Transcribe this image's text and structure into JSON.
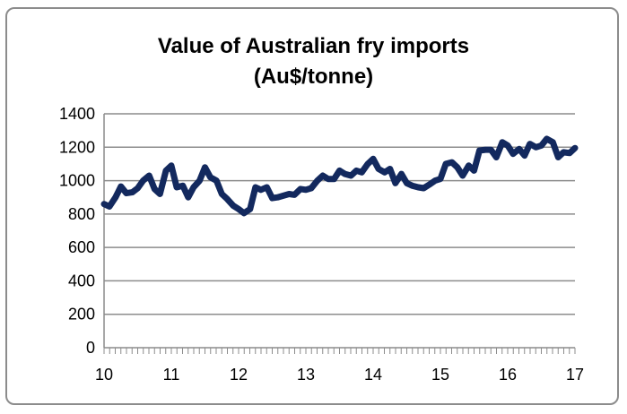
{
  "chart_data": {
    "type": "line",
    "title_lines": [
      "Value of Australian fry imports",
      "(Au$/tonne)"
    ],
    "xlabel": "",
    "ylabel": "",
    "ylim": [
      0,
      1400
    ],
    "yticks": [
      0,
      200,
      400,
      600,
      800,
      1000,
      1200,
      1400
    ],
    "xlim": [
      10,
      17
    ],
    "xticks": [
      "10",
      "11",
      "12",
      "13",
      "14",
      "15",
      "16",
      "17"
    ],
    "grid": "horizontal",
    "legend": "none",
    "line_color": "#13295e",
    "series": [
      {
        "x": [
          10.0,
          10.08,
          10.17,
          10.25,
          10.33,
          10.42,
          10.5,
          10.58,
          10.67,
          10.75,
          10.83,
          10.92,
          11.0,
          11.08,
          11.17,
          11.25,
          11.33,
          11.42,
          11.5,
          11.58,
          11.67,
          11.75,
          11.83,
          11.92,
          12.0,
          12.08,
          12.17,
          12.25,
          12.33,
          12.42,
          12.5,
          12.58,
          12.67,
          12.75,
          12.83,
          12.92,
          13.0,
          13.08,
          13.17,
          13.25,
          13.33,
          13.42,
          13.5,
          13.58,
          13.67,
          13.75,
          13.83,
          13.92,
          14.0,
          14.08,
          14.17,
          14.25,
          14.33,
          14.42,
          14.5,
          14.58,
          14.67,
          14.75,
          14.83,
          14.92,
          15.0,
          15.08,
          15.17,
          15.25,
          15.33,
          15.42,
          15.5,
          15.58,
          15.67,
          15.75,
          15.83,
          15.92,
          16.0,
          16.08,
          16.17,
          16.25,
          16.33,
          16.42,
          16.5,
          16.58,
          16.67,
          16.75,
          16.83,
          16.92,
          17.0
        ],
        "values": [
          860,
          845,
          900,
          965,
          925,
          930,
          955,
          1000,
          1030,
          950,
          920,
          1060,
          1090,
          960,
          970,
          900,
          960,
          1000,
          1080,
          1020,
          1000,
          920,
          890,
          850,
          830,
          805,
          830,
          960,
          945,
          960,
          895,
          900,
          910,
          920,
          915,
          950,
          945,
          955,
          1000,
          1030,
          1010,
          1010,
          1060,
          1040,
          1030,
          1060,
          1050,
          1100,
          1130,
          1070,
          1050,
          1070,
          985,
          1040,
          985,
          970,
          960,
          955,
          975,
          1000,
          1010,
          1100,
          1110,
          1080,
          1030,
          1090,
          1060,
          1180,
          1185,
          1185,
          1140,
          1230,
          1210,
          1160,
          1190,
          1150,
          1220,
          1200,
          1210,
          1250,
          1230,
          1140,
          1170,
          1165,
          1195
        ]
      }
    ]
  }
}
